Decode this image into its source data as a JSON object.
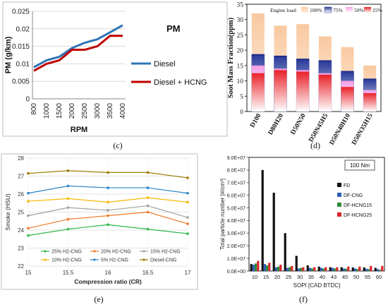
{
  "chart_data": [
    {
      "panel_label": "(c)",
      "type": "line",
      "title": "PM",
      "xlabel": "RPM",
      "ylabel": "PM (g/km)",
      "categories": [
        "800",
        "1000",
        "1500",
        "2000",
        "2500",
        "3000",
        "3500",
        "4000"
      ],
      "ylim": [
        0,
        0.025
      ],
      "yticks": [
        "0",
        "0.005",
        "0.01",
        "0.015",
        "0.02",
        "0.025"
      ],
      "grid": true,
      "legend": "right",
      "series": [
        {
          "name": "Diesel",
          "color": "#2e75b6",
          "values": [
            0.009,
            0.011,
            0.012,
            0.0145,
            0.016,
            0.017,
            0.019,
            0.021
          ]
        },
        {
          "name": "Diesel + HCNG",
          "color": "#c00000",
          "values": [
            0.008,
            0.01,
            0.011,
            0.014,
            0.014,
            0.015,
            0.018,
            0.018
          ]
        }
      ]
    },
    {
      "panel_label": "(d)",
      "type": "bar",
      "stacked": false,
      "ylabel": "Soot Mass Fraction(ppm)",
      "xlabel": "",
      "categories": [
        "D100",
        "D80H20",
        "D50N50",
        "D50N45H5",
        "D50N40H10",
        "D50N35H15"
      ],
      "ylim": [
        0,
        35
      ],
      "yticks": [
        "0",
        "5",
        "10",
        "15",
        "20",
        "25",
        "30",
        "35"
      ],
      "legend_title": "Engine load:",
      "legend": "top",
      "series": [
        {
          "name": "100%",
          "color": "#f9c9a0",
          "values": [
            32,
            28,
            28.5,
            24.5,
            21,
            15
          ]
        },
        {
          "name": "75%",
          "color": "#2a3a9a",
          "values": [
            18.5,
            18,
            17,
            16.5,
            13,
            10.5
          ]
        },
        {
          "name": "50%",
          "color": "#f2a0e6",
          "values": [
            15,
            14,
            13.5,
            12.5,
            10,
            7
          ]
        },
        {
          "name": "25%",
          "color": "#e8232a",
          "values": [
            12.5,
            13.5,
            13,
            12,
            8,
            6
          ]
        }
      ]
    },
    {
      "panel_label": "(e)",
      "type": "line",
      "xlabel": "Compression ratio (CR)",
      "ylabel": "Smoke (HSU)",
      "x": [
        15,
        15.5,
        16,
        16.5,
        17
      ],
      "xticks": [
        "15",
        "15.5",
        "16",
        "16.5",
        "17"
      ],
      "ylim": [
        22,
        28
      ],
      "yticks": [
        "22",
        "23",
        "24",
        "25",
        "26",
        "27",
        "28"
      ],
      "grid": true,
      "legend": "bottom",
      "series": [
        {
          "name": "25% H2-CNG",
          "color": "#2eb84a",
          "values": [
            23.7,
            24.05,
            24.3,
            24.05,
            23.8
          ]
        },
        {
          "name": "20% H2-CNG",
          "color": "#f07a2a",
          "values": [
            24.1,
            24.6,
            24.8,
            25.0,
            24.35
          ]
        },
        {
          "name": "15% H2-CNG",
          "color": "#a0a0a0",
          "values": [
            24.8,
            25.25,
            25.1,
            25.35,
            24.7
          ]
        },
        {
          "name": "10% H2-CNG",
          "color": "#f5b800",
          "values": [
            25.6,
            25.75,
            25.55,
            25.8,
            25.55
          ]
        },
        {
          "name": "5% H2-CNG",
          "color": "#2b83c6",
          "values": [
            26.05,
            26.45,
            26.35,
            26.35,
            26.05
          ]
        },
        {
          "name": "Diesel-CNG",
          "color": "#9a7b00",
          "values": [
            27.15,
            27.3,
            27.2,
            27.2,
            26.9
          ]
        }
      ]
    },
    {
      "panel_label": "(f)",
      "type": "bar",
      "annotation": "100 Nm",
      "xlabel": "SOPI [CAD BTDC]",
      "ylabel": "Total particle number [#/cm³]",
      "categories": [
        "10",
        "15",
        "20",
        "25",
        "30",
        "35",
        "40",
        "43",
        "45",
        "50",
        "55",
        "60"
      ],
      "ylim": [
        0,
        90000000
      ],
      "yticks": [
        "0.0E+00",
        "1.0E+07",
        "2.0E+07",
        "3.0E+07",
        "4.0E+07",
        "5.0E+07",
        "6.0E+07",
        "7.0E+07",
        "8.0E+07",
        "9.0E+07"
      ],
      "legend": "right",
      "series": [
        {
          "name": "FD",
          "color": "#111111",
          "values": [
            5500000,
            80000000,
            62000000,
            30000000,
            12000000,
            4500000,
            3500000,
            3000000,
            3000000,
            2800000,
            2800000,
            2500000
          ]
        },
        {
          "name": "DF-CNG",
          "color": "#2f5fb8",
          "values": [
            5000000,
            5500000,
            3000000,
            2500000,
            2000000,
            2500000,
            2500000,
            2500000,
            2000000,
            2000000,
            1800000,
            1500000
          ]
        },
        {
          "name": "DF-HCNG15",
          "color": "#2e8b3a",
          "values": [
            6000000,
            4500000,
            3500000,
            3000000,
            2500000,
            2000000,
            2000000,
            2000000,
            1800000,
            1500000,
            1500000,
            1000000
          ]
        },
        {
          "name": "DF-HCNG25",
          "color": "#d9262a",
          "values": [
            8000000,
            6500000,
            5000000,
            4000000,
            3000000,
            3000000,
            3000000,
            3000000,
            3500000,
            3500000,
            4000000,
            4000000
          ]
        }
      ]
    }
  ]
}
